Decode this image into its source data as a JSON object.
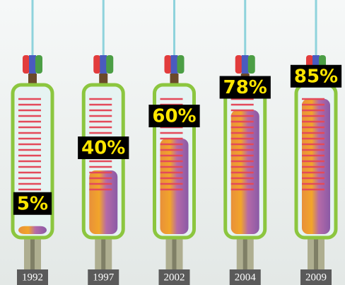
{
  "chart_data": {
    "type": "bar",
    "categories": [
      "1992",
      "1997",
      "2002",
      "2004",
      "2009"
    ],
    "values": [
      5,
      40,
      60,
      78,
      85
    ],
    "value_labels": [
      "5%",
      "40%",
      "60%",
      "78%",
      "85%"
    ]
  }
}
